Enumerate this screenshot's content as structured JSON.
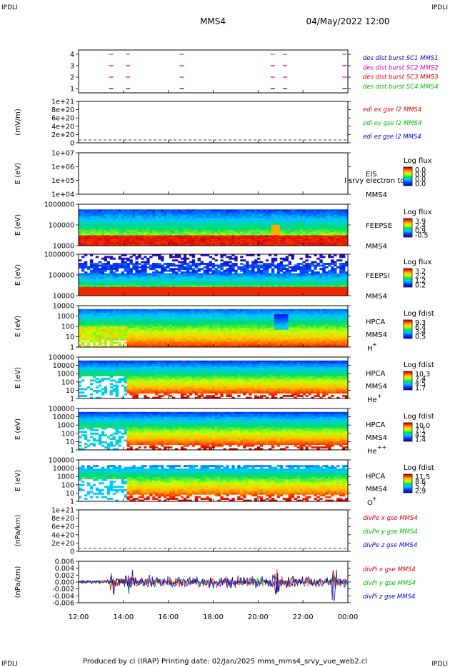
{
  "corner_tl": "IPDLI",
  "corner_tr": "IPDLI",
  "corner_bl": "IPDLI",
  "corner_br": "IPDLI",
  "header": {
    "mission": "MMS4",
    "datetime": "04/May/2022 12:00"
  },
  "footer": "Produced by cl (IRAP)   Printing date: 02/Jan/2025   mms_mms4_srvy_vue_web2.cl",
  "chart_data": {
    "type": "multi-panel time series",
    "x_ticks": [
      "12:00",
      "14:00",
      "16:00",
      "18:00",
      "20:00",
      "22:00",
      "00:00"
    ],
    "xlim_hours": [
      12,
      24
    ],
    "colors": {
      "red": "#dd0000",
      "green": "#00bb00",
      "blue": "#0000cc",
      "magenta": "#cc00cc"
    },
    "panels": [
      {
        "id": "burst",
        "type": "timeline",
        "yticks": [
          "4",
          "3",
          "2",
          "1"
        ],
        "legend": [
          {
            "text": "des dist burst SC1 MMS1",
            "color": "#0000cc"
          },
          {
            "text": "des dist burst SC2 MMS2",
            "color": "#cc00cc"
          },
          {
            "text": "des dist burst SC3 MMS3",
            "color": "#dd0000"
          },
          {
            "text": "des dist burst SC4 MMS4",
            "color": "#00bb00"
          }
        ],
        "bursts_hours": [
          13.45,
          14.2,
          16.6,
          20.65,
          21.2,
          23.85
        ]
      },
      {
        "id": "edi",
        "type": "line-empty",
        "ylabel": "(mV/m)",
        "yticks": [
          "1e+21",
          "8e+20",
          "6e+20",
          "4e+20",
          "2e+20",
          "0"
        ],
        "legend": [
          {
            "text": "edi ex gse l2 MMS4",
            "color": "#dd0000"
          },
          {
            "text": "edi ey gse l2 MMS4",
            "color": "#00bb00"
          },
          {
            "text": "edi ez gse l2 MMS4",
            "color": "#0000cc"
          }
        ]
      },
      {
        "id": "eis",
        "type": "spectrogram-empty",
        "ylabel": "E (eV)",
        "yticks": [
          "1e+07",
          "1e+06",
          "1e+05",
          "1e+04"
        ],
        "instrument": "EIS",
        "sc": "MMS4",
        "overlay": "l srvy electron to",
        "cbar_title": "Log flux",
        "cbar_ticks": [
          "0.0",
          "0.0",
          "0.0",
          "0.0"
        ]
      },
      {
        "id": "feepse",
        "type": "spectrogram",
        "ylabel": "E (eV)",
        "yticks": [
          "1000000",
          "100000",
          "10000"
        ],
        "instrument": "FEEPSE",
        "sc": "MMS4",
        "cbar_title": "Log flux",
        "cbar_ticks": [
          "3.9",
          "2.4",
          "0.9",
          "-0.5"
        ]
      },
      {
        "id": "feepsi",
        "type": "spectrogram",
        "ylabel": "E (eV)",
        "yticks": [
          "1000000",
          "100000",
          "10000"
        ],
        "instrument": "FEEPSI",
        "sc": "MMS4",
        "cbar_title": "Log flux",
        "cbar_ticks": [
          "3.2",
          "2.2",
          "1.2",
          "0.2"
        ]
      },
      {
        "id": "hpca_h",
        "type": "spectrogram",
        "ylabel": "E (eV)",
        "yticks": [
          "10000",
          "1000",
          "100",
          "10",
          "1"
        ],
        "instrument": "HPCA",
        "sc": "MMS4",
        "species": "H",
        "species_sup": "+",
        "cbar_title": "Log fdist",
        "cbar_ticks": [
          "9.3",
          "6.4",
          "3.4",
          "0.5"
        ]
      },
      {
        "id": "hpca_he",
        "type": "spectrogram",
        "ylabel": "E (eV)",
        "yticks": [
          "100000",
          "10000",
          "1000",
          "100",
          "10",
          "1"
        ],
        "instrument": "HPCA",
        "sc": "MMS4",
        "species": "He",
        "species_sup": "+",
        "cbar_title": "Log fdist",
        "cbar_ticks": [
          "10.3",
          "7.4",
          "4.5",
          "1.7"
        ]
      },
      {
        "id": "hpca_hepp",
        "type": "spectrogram",
        "ylabel": "E (eV)",
        "yticks": [
          "100000",
          "10000",
          "1000",
          "100",
          "10",
          "1"
        ],
        "instrument": "HPCA",
        "sc": "MMS4",
        "species": "He",
        "species_sup": "++",
        "cbar_title": "Log fdist",
        "cbar_ticks": [
          "10.0",
          "7.1",
          "4.2",
          "1.4"
        ]
      },
      {
        "id": "hpca_o",
        "type": "spectrogram",
        "ylabel": "E (eV)",
        "yticks": [
          "100000",
          "10000",
          "1000",
          "100",
          "10",
          "1"
        ],
        "instrument": "HPCA",
        "sc": "MMS4",
        "species": "O",
        "species_sup": "+",
        "cbar_title": "Log fdist",
        "cbar_ticks": [
          "11.5",
          "8.6",
          "5.7",
          "2.9"
        ]
      },
      {
        "id": "divpe",
        "type": "line-empty",
        "ylabel": "(nPa/km)",
        "yticks": [
          "1e+21",
          "8e+20",
          "6e+20",
          "4e+20",
          "2e+20",
          "0"
        ],
        "legend": [
          {
            "text": "divPe x gse MMS4",
            "color": "#dd0000"
          },
          {
            "text": "divPe y gse MMS4",
            "color": "#00bb00"
          },
          {
            "text": "divPe z gse MMS4",
            "color": "#0000cc"
          }
        ]
      },
      {
        "id": "divpi",
        "type": "line",
        "ylabel": "(nPa/km)",
        "yticks": [
          "0.006",
          "0.004",
          "0.002",
          "0.000",
          "-0.002",
          "-0.004",
          "-0.006"
        ],
        "ylim": [
          -0.007,
          0.007
        ],
        "legend": [
          {
            "text": "divPi x gse MMS4",
            "color": "#dd0000"
          },
          {
            "text": "divPi y gse MMS4",
            "color": "#00bb00"
          },
          {
            "text": "divPi z gse MMS4",
            "color": "#0000cc"
          }
        ]
      }
    ]
  }
}
